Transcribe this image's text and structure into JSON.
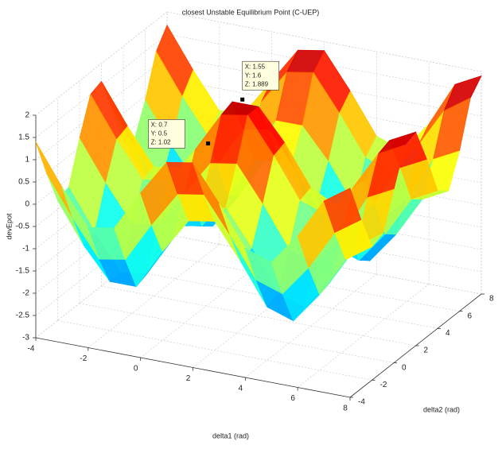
{
  "chart_data": {
    "type": "surface",
    "title": "closest Unstable Equilibrium Point (C-UEP)",
    "xlabel": "delta1 (rad)",
    "ylabel": "delta2 (rad)",
    "zlabel": "devEpot",
    "x": [
      -4,
      -3,
      -2,
      -1,
      0,
      1,
      2,
      3,
      4,
      5,
      6,
      7,
      8
    ],
    "y": [
      -4,
      -3,
      -2,
      -1,
      0,
      1,
      2,
      3,
      4,
      5,
      6,
      7,
      8
    ],
    "z": [
      [
        1.4,
        0.5,
        -0.3,
        -0.2,
        0.7,
        1.5,
        1.6,
        0.8,
        -0.1,
        -0.3,
        0.4,
        1.3,
        1.7
      ],
      [
        0.5,
        -0.4,
        -1.2,
        -1.1,
        -0.2,
        0.6,
        0.7,
        -0.1,
        -1.0,
        -1.2,
        -0.5,
        0.4,
        0.8
      ],
      [
        -0.3,
        -1.2,
        -1.9,
        -1.9,
        -1.0,
        -0.2,
        -0.1,
        -0.9,
        -1.8,
        -2.0,
        -1.3,
        -0.4,
        0.0
      ],
      [
        -0.2,
        -1.1,
        -1.9,
        -1.8,
        -0.9,
        -0.1,
        0.0,
        -0.8,
        -1.7,
        -1.9,
        -1.2,
        -0.3,
        0.1
      ],
      [
        0.7,
        -0.2,
        -1.0,
        -0.9,
        -0.1,
        0.7,
        0.8,
        0.0,
        -0.9,
        -1.1,
        -0.4,
        0.6,
        0.9
      ],
      [
        1.5,
        0.6,
        -0.2,
        -0.1,
        0.7,
        1.6,
        1.7,
        0.9,
        0.0,
        -0.2,
        0.5,
        1.4,
        1.7
      ],
      [
        1.6,
        0.7,
        -0.1,
        0.0,
        0.8,
        1.7,
        1.7,
        1.0,
        0.1,
        -0.2,
        0.5,
        1.5,
        1.8
      ],
      [
        0.8,
        -0.1,
        -0.9,
        -0.8,
        0.0,
        0.9,
        1.0,
        0.2,
        -0.7,
        -0.9,
        -0.2,
        0.7,
        1.0
      ],
      [
        -0.1,
        -1.0,
        -1.8,
        -1.7,
        -0.9,
        0.0,
        0.1,
        -0.7,
        -1.6,
        -1.8,
        -1.1,
        -0.2,
        0.1
      ],
      [
        -0.3,
        -1.2,
        -2.0,
        -1.9,
        -1.1,
        -0.2,
        -0.2,
        -0.9,
        -1.8,
        -2.0,
        -1.3,
        -0.4,
        -0.1
      ],
      [
        0.4,
        -0.5,
        -1.3,
        -1.2,
        -0.4,
        0.5,
        0.5,
        -0.2,
        -1.1,
        -1.3,
        -0.7,
        0.3,
        0.6
      ],
      [
        1.3,
        0.4,
        -0.4,
        -0.3,
        0.6,
        1.4,
        1.5,
        0.7,
        -0.2,
        -0.4,
        0.3,
        1.2,
        1.6
      ],
      [
        1.7,
        0.8,
        0.0,
        0.1,
        0.9,
        1.7,
        1.8,
        1.0,
        0.1,
        -0.1,
        0.6,
        1.6,
        1.9
      ]
    ],
    "xlim": [
      -4,
      8
    ],
    "ylim": [
      -4,
      8
    ],
    "zlim": [
      -3,
      2
    ],
    "xticks": [
      -4,
      -2,
      0,
      2,
      4,
      6,
      8
    ],
    "yticks": [
      -4,
      -2,
      0,
      2,
      4,
      6,
      8
    ],
    "zticks": [
      -3,
      -2.5,
      -2,
      -1.5,
      -1,
      -0.5,
      0,
      0.5,
      1,
      1.5,
      2
    ],
    "grid": true,
    "colormap": "jet",
    "annotations": [
      {
        "x": 0.7,
        "y": 0.5,
        "z": 1.02,
        "lines": [
          "X: 0.7",
          "Y: 0.5",
          "Z: 1.02"
        ]
      },
      {
        "x": 1.55,
        "y": 1.6,
        "z": 1.889,
        "lines": [
          "X: 1.55",
          "Y: 1.6",
          "Z: 1.889"
        ]
      }
    ]
  }
}
